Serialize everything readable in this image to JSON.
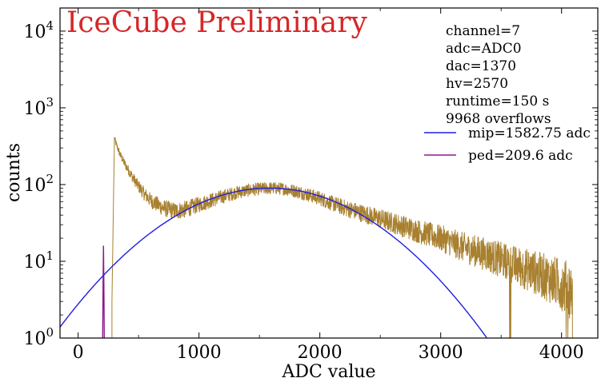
{
  "chart_data": {
    "type": "line",
    "title": "",
    "watermark": "IceCube Preliminary",
    "xlabel": "ADC value",
    "ylabel": "counts",
    "xlim": [
      -150,
      4300
    ],
    "ylim": [
      1,
      20000
    ],
    "yscale": "log",
    "x_ticks": [
      {
        "value": 0,
        "label": "0"
      },
      {
        "value": 1000,
        "label": "1000"
      },
      {
        "value": 2000,
        "label": "2000"
      },
      {
        "value": 3000,
        "label": "3000"
      },
      {
        "value": 4000,
        "label": "4000"
      }
    ],
    "y_ticks": [
      {
        "value": 1,
        "label": "10",
        "exp": "0"
      },
      {
        "value": 10,
        "label": "10",
        "exp": "1"
      },
      {
        "value": 100,
        "label": "10",
        "exp": "2"
      },
      {
        "value": 1000,
        "label": "10",
        "exp": "3"
      },
      {
        "value": 10000,
        "label": "10",
        "exp": "4"
      }
    ],
    "info_lines": [
      "channel=7",
      "adc=ADC0",
      "dac=1370",
      "hv=2570",
      "runtime=150 s",
      "9968 overflows"
    ],
    "legend": {
      "placement": "top-right",
      "entries": [
        "mip=1582.75 adc",
        "ped=209.6 adc"
      ]
    },
    "series": [
      {
        "role": "histogram",
        "color": "#a8802f",
        "x": [
          280,
          300,
          320,
          350,
          400,
          450,
          500,
          550,
          600,
          700,
          800,
          900,
          1000,
          1100,
          1200,
          1300,
          1400,
          1500,
          1600,
          1700,
          1800,
          1900,
          2000,
          2100,
          2200,
          2400,
          2600,
          2800,
          3000,
          3200,
          3400,
          3600,
          3800,
          4000,
          4090
        ],
        "y": [
          3,
          400,
          320,
          240,
          170,
          125,
          95,
          75,
          62,
          50,
          45,
          48,
          55,
          62,
          70,
          78,
          84,
          88,
          90,
          88,
          82,
          74,
          66,
          57,
          50,
          40,
          32,
          25,
          20,
          15,
          12,
          9,
          7,
          5,
          4
        ]
      },
      {
        "role": "mip-fit",
        "name": "mip=1582.75 adc",
        "color": "#1f1fdf",
        "peak_x": 1582.75,
        "peak_y": 90,
        "sigma": 600
      },
      {
        "role": "ped-peak",
        "name": "ped=209.6 adc",
        "color": "#8b1a8b",
        "x": [
          203,
          206,
          209.6,
          213,
          216
        ],
        "y": [
          1,
          5,
          16,
          5,
          1
        ]
      }
    ]
  }
}
